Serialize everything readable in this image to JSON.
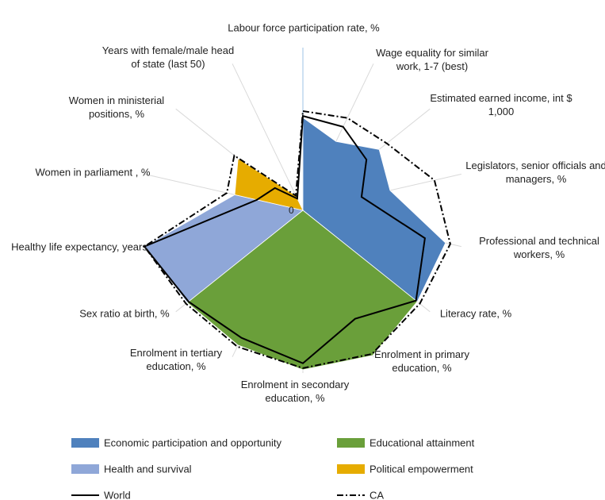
{
  "chart_data": {
    "type": "radar",
    "categories": [
      "Labour force participation rate, %",
      "Wage equality for similar work, 1-7 (best)",
      "Estimated earned income, int $ 1,000",
      "Legislators, senior officials and managers, %",
      "Professional and technical workers, %",
      "Literacy rate, %",
      "Enrolment in primary education, %",
      "Enrolment in secondary education, %",
      "Enrolment in tertiary education, %",
      "Sex ratio at birth, %",
      "Healthy life expectancy, years",
      "Women in parliament , %",
      "Women in ministerial positions, %",
      "Years with female/male head of state (last 50)"
    ],
    "rlim": [
      0,
      1
    ],
    "rticks": [
      0
    ],
    "series": [
      {
        "name": "Economic participation and opportunity",
        "color": "#4f81bd",
        "fill": true,
        "values": [
          0.57,
          0.47,
          0.6,
          0.55,
          0.9,
          null,
          null,
          null,
          null,
          null,
          null,
          null,
          null,
          null
        ]
      },
      {
        "name": "Educational attainment",
        "color": "#6a9f3a",
        "fill": true,
        "values": [
          null,
          null,
          null,
          null,
          null,
          0.9,
          0.99,
          0.98,
          0.92,
          null,
          null,
          null,
          null,
          null
        ]
      },
      {
        "name": "Health and survival",
        "color": "#8fa7d8",
        "fill": true,
        "values": [
          null,
          null,
          null,
          null,
          null,
          null,
          null,
          null,
          null,
          0.91,
          1.0,
          null,
          null,
          null
        ]
      },
      {
        "name": "Political empowerment",
        "color": "#e6ac00",
        "fill": true,
        "values": [
          null,
          null,
          null,
          null,
          null,
          null,
          null,
          null,
          null,
          null,
          null,
          0.43,
          0.51,
          0.1
        ]
      },
      {
        "name": "World",
        "color": "#000000",
        "dash": "solid",
        "values": [
          0.58,
          0.57,
          0.5,
          0.37,
          0.77,
          0.89,
          0.74,
          0.94,
          0.87,
          0.9,
          1.0,
          0.29,
          0.22,
          0.08
        ]
      },
      {
        "name": "CA",
        "color": "#000000",
        "dash": "dashdot",
        "values": [
          0.61,
          0.63,
          0.66,
          0.83,
          0.93,
          0.92,
          0.98,
          0.97,
          0.93,
          0.92,
          1.0,
          0.48,
          0.54,
          0.1
        ]
      }
    ]
  }
}
